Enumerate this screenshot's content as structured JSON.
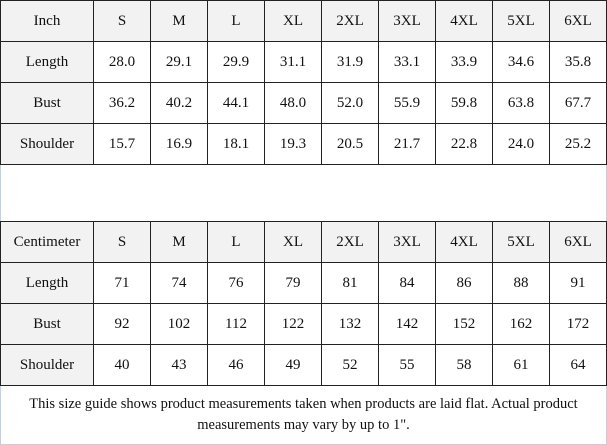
{
  "inch_table": {
    "header": [
      "Inch",
      "S",
      "M",
      "L",
      "XL",
      "2XL",
      "3XL",
      "4XL",
      "5XL",
      "6XL"
    ],
    "rows": [
      [
        "Length",
        "28.0",
        "29.1",
        "29.9",
        "31.1",
        "31.9",
        "33.1",
        "33.9",
        "34.6",
        "35.8"
      ],
      [
        "Bust",
        "36.2",
        "40.2",
        "44.1",
        "48.0",
        "52.0",
        "55.9",
        "59.8",
        "63.8",
        "67.7"
      ],
      [
        "Shoulder",
        "15.7",
        "16.9",
        "18.1",
        "19.3",
        "20.5",
        "21.7",
        "22.8",
        "24.0",
        "25.2"
      ]
    ]
  },
  "cm_table": {
    "header": [
      "Centimeter",
      "S",
      "M",
      "L",
      "XL",
      "2XL",
      "3XL",
      "4XL",
      "5XL",
      "6XL"
    ],
    "rows": [
      [
        "Length",
        "71",
        "74",
        "76",
        "79",
        "81",
        "84",
        "86",
        "88",
        "91"
      ],
      [
        "Bust",
        "92",
        "102",
        "112",
        "122",
        "132",
        "142",
        "152",
        "162",
        "172"
      ],
      [
        "Shoulder",
        "40",
        "43",
        "46",
        "49",
        "52",
        "55",
        "58",
        "61",
        "64"
      ]
    ]
  },
  "note": "This size guide shows product measurements taken when products are laid flat. Actual product measurements may vary by up to 1\"."
}
